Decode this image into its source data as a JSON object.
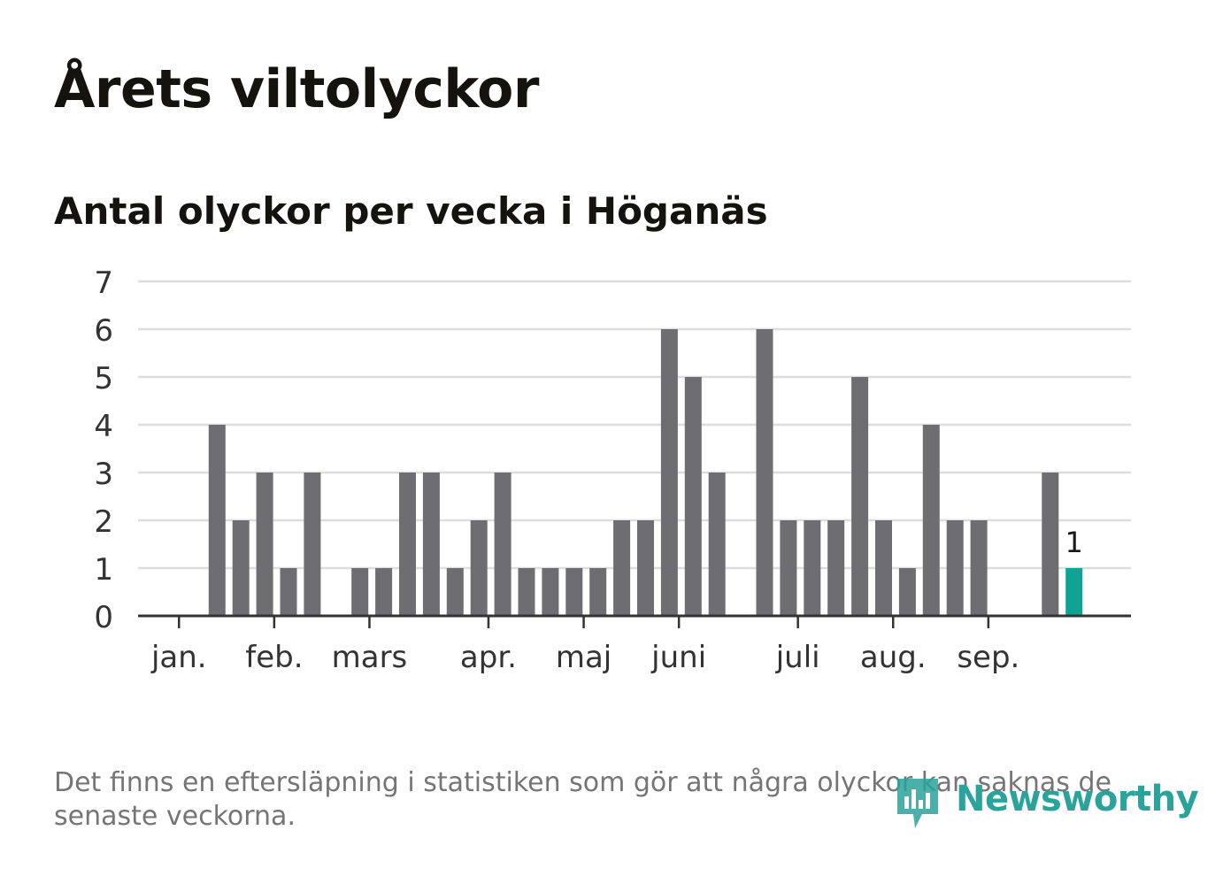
{
  "header": {
    "title": "Årets viltolyckor",
    "subtitle": "Antal olyckor per vecka i Höganäs"
  },
  "footnote": "Det finns en eftersläpning i statistiken som gör att några olyckor kan saknas de senaste veckorna.",
  "logo": {
    "text": "Newsworthy",
    "icon": "newsworthy-logo-icon"
  },
  "colors": {
    "bar": "#6e6d72",
    "highlight": "#0fa393",
    "grid": "#dddddd",
    "axis": "#333333",
    "text": "#333333"
  },
  "chart_data": {
    "type": "bar",
    "title": "Antal olyckor per vecka i Höganäs",
    "xlabel": "",
    "ylabel": "",
    "ylim": [
      0,
      7
    ],
    "yticks": [
      0,
      1,
      2,
      3,
      4,
      5,
      6,
      7
    ],
    "weeks": [
      1,
      2,
      3,
      4,
      5,
      6,
      7,
      8,
      9,
      10,
      11,
      12,
      13,
      14,
      15,
      16,
      17,
      18,
      19,
      20,
      21,
      22,
      23,
      24,
      25,
      26,
      27,
      28,
      29,
      30,
      31,
      32,
      33,
      34,
      35,
      36,
      37,
      38,
      39
    ],
    "values": [
      0,
      0,
      4,
      2,
      3,
      1,
      3,
      0,
      1,
      1,
      3,
      3,
      1,
      2,
      3,
      1,
      1,
      1,
      1,
      2,
      2,
      6,
      5,
      3,
      0,
      6,
      2,
      2,
      2,
      5,
      2,
      1,
      4,
      2,
      2,
      0,
      0,
      3,
      1
    ],
    "highlight_last": true,
    "last_value_label": "1",
    "month_labels": [
      {
        "label": "jan.",
        "week_pos": 1.4
      },
      {
        "label": "feb.",
        "week_pos": 5.4
      },
      {
        "label": "mars",
        "week_pos": 9.4
      },
      {
        "label": "apr.",
        "week_pos": 14.4
      },
      {
        "label": "maj",
        "week_pos": 18.4
      },
      {
        "label": "juni",
        "week_pos": 22.4
      },
      {
        "label": "juli",
        "week_pos": 27.4
      },
      {
        "label": "aug.",
        "week_pos": 31.4
      },
      {
        "label": "sep.",
        "week_pos": 35.4
      }
    ]
  }
}
